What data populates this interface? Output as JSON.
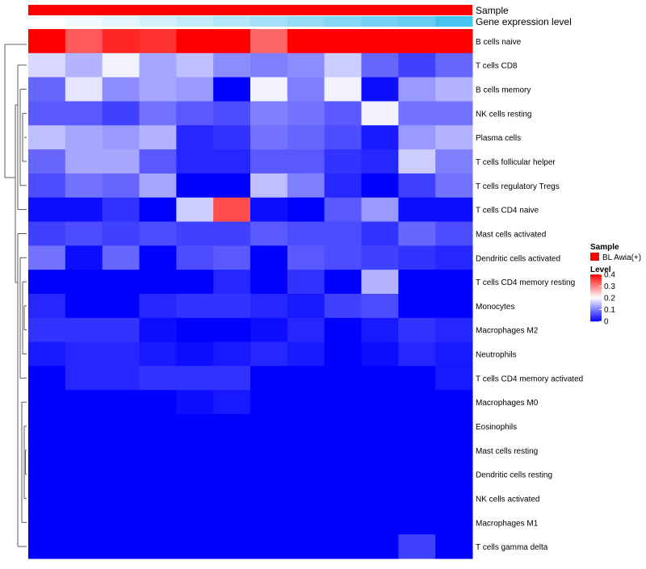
{
  "chart_data": {
    "type": "heatmap",
    "annotation_tracks": [
      "Sample",
      "Gene expression level"
    ],
    "sample_color": "#ff0000",
    "expression_gradient": [
      "#ffffff",
      "#47c3f0"
    ],
    "rows": [
      "B cells naive",
      "T cells CD8",
      "B cells memory",
      "NK cells resting",
      "Plasma cells",
      "T cells follicular helper",
      "T cells regulatory  Tregs",
      "T cells CD4 naive",
      "Mast cells activated",
      "Dendritic cells activated",
      "T cells CD4 memory resting",
      "Monocytes",
      "Macrophages M2",
      "Neutrophils",
      "T cells CD4 memory activated",
      "Macrophages M0",
      "Eosinophils",
      "Mast cells resting",
      "Dendritic cells resting",
      "NK cells activated",
      "Macrophages M1",
      "T cells gamma delta"
    ],
    "values": [
      [
        0.42,
        0.33,
        0.37,
        0.36,
        0.46,
        0.44,
        0.32,
        0.46,
        0.4,
        0.46,
        0.4,
        0.4
      ],
      [
        0.17,
        0.14,
        0.19,
        0.13,
        0.15,
        0.11,
        0.1,
        0.11,
        0.16,
        0.08,
        0.05,
        0.08
      ],
      [
        0.08,
        0.18,
        0.11,
        0.13,
        0.12,
        0.0,
        0.19,
        0.1,
        0.19,
        0.01,
        0.12,
        0.14
      ],
      [
        0.07,
        0.07,
        0.05,
        0.09,
        0.07,
        0.06,
        0.1,
        0.09,
        0.07,
        0.19,
        0.09,
        0.09
      ],
      [
        0.15,
        0.13,
        0.12,
        0.14,
        0.03,
        0.04,
        0.09,
        0.08,
        0.06,
        0.02,
        0.12,
        0.14
      ],
      [
        0.08,
        0.13,
        0.13,
        0.07,
        0.03,
        0.03,
        0.07,
        0.07,
        0.04,
        0.03,
        0.16,
        0.1
      ],
      [
        0.06,
        0.09,
        0.08,
        0.13,
        0.0,
        0.0,
        0.15,
        0.1,
        0.03,
        0.0,
        0.05,
        0.09
      ],
      [
        0.01,
        0.01,
        0.04,
        0.0,
        0.16,
        0.34,
        0.01,
        0.0,
        0.07,
        0.12,
        0.01,
        0.01
      ],
      [
        0.05,
        0.06,
        0.05,
        0.06,
        0.05,
        0.05,
        0.07,
        0.06,
        0.06,
        0.04,
        0.08,
        0.06
      ],
      [
        0.09,
        0.01,
        0.08,
        0.0,
        0.06,
        0.07,
        0.0,
        0.07,
        0.06,
        0.05,
        0.04,
        0.03
      ],
      [
        0.0,
        0.0,
        0.0,
        0.0,
        0.0,
        0.03,
        0.0,
        0.04,
        0.0,
        0.14,
        0.0,
        0.0
      ],
      [
        0.03,
        0.0,
        0.0,
        0.03,
        0.04,
        0.04,
        0.03,
        0.02,
        0.05,
        0.06,
        0.0,
        0.0
      ],
      [
        0.04,
        0.04,
        0.04,
        0.01,
        0.0,
        0.0,
        0.01,
        0.03,
        0.0,
        0.02,
        0.04,
        0.03
      ],
      [
        0.02,
        0.03,
        0.03,
        0.02,
        0.01,
        0.02,
        0.03,
        0.02,
        0.0,
        0.01,
        0.03,
        0.02
      ],
      [
        0.0,
        0.03,
        0.03,
        0.04,
        0.04,
        0.04,
        0.0,
        0.0,
        0.0,
        0.0,
        0.0,
        0.02
      ],
      [
        0.0,
        0.0,
        0.0,
        0.0,
        0.01,
        0.02,
        0.0,
        0.0,
        0.0,
        0.0,
        0.0,
        0.0
      ],
      [
        0.0,
        0.0,
        0.0,
        0.0,
        0.0,
        0.0,
        0.0,
        0.0,
        0.0,
        0.0,
        0.0,
        0.0
      ],
      [
        0.0,
        0.0,
        0.0,
        0.0,
        0.0,
        0.0,
        0.0,
        0.0,
        0.0,
        0.0,
        0.0,
        0.0
      ],
      [
        0.0,
        0.0,
        0.0,
        0.0,
        0.0,
        0.0,
        0.0,
        0.0,
        0.0,
        0.0,
        0.0,
        0.0
      ],
      [
        0.0,
        0.0,
        0.0,
        0.0,
        0.0,
        0.0,
        0.0,
        0.0,
        0.0,
        0.0,
        0.0,
        0.0
      ],
      [
        0.0,
        0.0,
        0.0,
        0.0,
        0.0,
        0.0,
        0.0,
        0.0,
        0.0,
        0.0,
        0.0,
        0.0
      ],
      [
        0.0,
        0.0,
        0.0,
        0.0,
        0.0,
        0.0,
        0.0,
        0.0,
        0.0,
        0.0,
        0.05,
        0.0
      ]
    ],
    "expression_levels": [
      0.0,
      0.08,
      0.15,
      0.25,
      0.33,
      0.42,
      0.5,
      0.58,
      0.67,
      0.75,
      0.83,
      1.0
    ],
    "color_scale": {
      "min": 0,
      "max": 0.4,
      "low": "#0000ff",
      "mid": "#ffffff",
      "high": "#ff0000",
      "mid_value": 0.2
    },
    "legend": {
      "sample_title": "Sample",
      "sample_entry": "BL Awia(+)",
      "level_title": "Level",
      "ticks": [
        "0.4",
        "0.3",
        "0.2",
        "0.1",
        "0"
      ],
      "tick_values": [
        0.4,
        0.3,
        0.2,
        0.1,
        0
      ]
    }
  }
}
